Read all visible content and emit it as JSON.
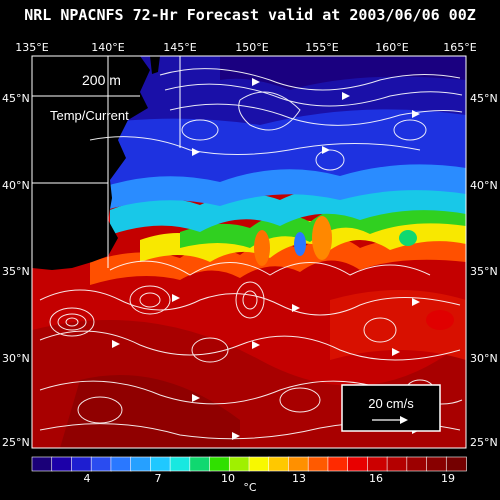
{
  "title": "NRL NPACNFS 72-Hr Forecast valid at 2003/06/06 00Z",
  "annotation": {
    "depth": "200 m",
    "fields": "Temp/Current"
  },
  "lon_labels": [
    "135°E",
    "140°E",
    "145°E",
    "150°E",
    "155°E",
    "160°E",
    "165°E"
  ],
  "lat_labels": [
    "45°N",
    "40°N",
    "35°N",
    "30°N",
    "25°N"
  ],
  "scale_vector": {
    "label": "20 cm/s"
  },
  "colorbar": {
    "ticks": [
      "4",
      "7",
      "10",
      "13",
      "16",
      "19"
    ],
    "unit": "°C",
    "colors": [
      "#1a0078",
      "#1c00a8",
      "#1e1ed0",
      "#2a4cf0",
      "#2a78ff",
      "#26a0ff",
      "#20c8ff",
      "#18e8e0",
      "#10d870",
      "#30e000",
      "#a0f000",
      "#f8f800",
      "#ffc800",
      "#ff9000",
      "#ff5a00",
      "#ff2a00",
      "#e80000",
      "#cc0000",
      "#b40000",
      "#9c0000",
      "#880000",
      "#740000"
    ]
  }
}
